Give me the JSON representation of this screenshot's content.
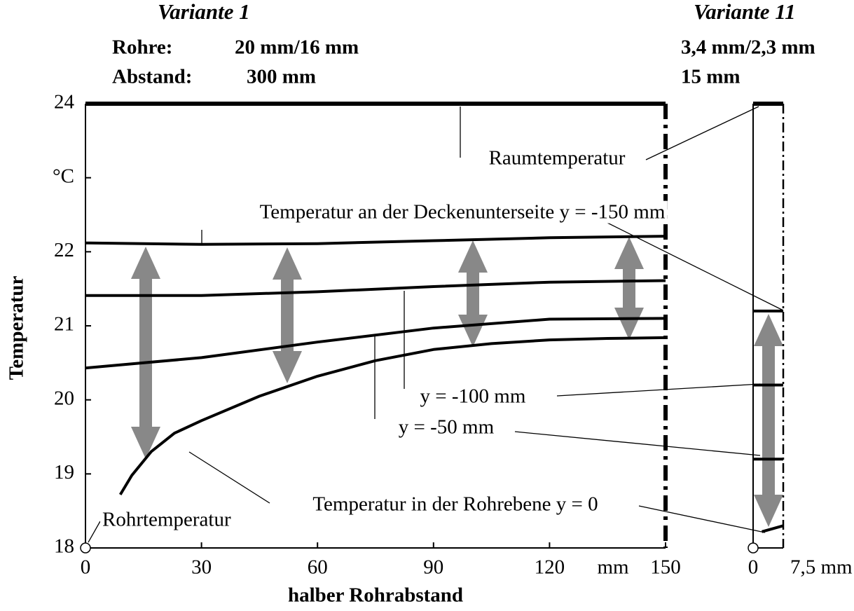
{
  "chart_data": [
    {
      "type": "line",
      "title": "Variante 1",
      "subtitle": [
        "Rohre:",
        "20 mm/16 mm",
        "Abstand:",
        "300 mm"
      ],
      "xlabel": "halber Rohrabstand",
      "ylabel": "Temperatur",
      "x_unit": "mm",
      "xlim": [
        0,
        150
      ],
      "ylim": [
        18,
        24
      ],
      "xticks": [
        0,
        30,
        60,
        90,
        120,
        150
      ],
      "yticks": [
        18,
        19,
        20,
        21,
        22,
        {
          "value": 23,
          "label": "°C"
        },
        24
      ],
      "color": "#000000",
      "series": [
        {
          "name": "Raumtemperatur",
          "x": [
            0,
            150
          ],
          "values": [
            24,
            24
          ]
        },
        {
          "name": "Temperatur an der Deckenunterseite y = -150 mm",
          "x": [
            0,
            30,
            60,
            90,
            120,
            150
          ],
          "values": [
            22.12,
            22.1,
            22.11,
            22.15,
            22.19,
            22.21
          ]
        },
        {
          "name": "y = -100 mm",
          "x": [
            0,
            30,
            60,
            90,
            120,
            150
          ],
          "values": [
            21.41,
            21.41,
            21.46,
            21.53,
            21.59,
            21.61
          ]
        },
        {
          "name": "y = -50 mm",
          "x": [
            0,
            30,
            60,
            90,
            120,
            150
          ],
          "values": [
            20.43,
            20.57,
            20.78,
            20.97,
            21.09,
            21.1
          ]
        },
        {
          "name": "Temperatur in der Rohrebene y = 0",
          "x": [
            9,
            12,
            17,
            23,
            30,
            45,
            60,
            75,
            90,
            105,
            120,
            135,
            150
          ],
          "values": [
            18.72,
            18.98,
            19.3,
            19.55,
            19.72,
            20.05,
            20.32,
            20.53,
            20.68,
            20.76,
            20.81,
            20.83,
            20.84
          ]
        },
        {
          "name": "Rohrtemperatur",
          "x": [
            0
          ],
          "values": [
            18
          ],
          "marker": "circle"
        }
      ]
    },
    {
      "type": "line",
      "title": "Variante 11",
      "subtitle": [
        "3,4 mm/2,3 mm",
        "15 mm"
      ],
      "xlim": [
        0,
        7.5
      ],
      "ylim": [
        18,
        24
      ],
      "xticks": [
        0,
        {
          "value": 7.5,
          "label": "7,5 mm"
        }
      ],
      "color": "#000000",
      "series": [
        {
          "x": [
            0,
            7.5
          ],
          "values": [
            24,
            24
          ]
        },
        {
          "x": [
            0,
            7.5
          ],
          "values": [
            21.2,
            21.2
          ]
        },
        {
          "x": [
            0,
            7.5
          ],
          "values": [
            20.2,
            20.2
          ]
        },
        {
          "x": [
            0,
            7.5
          ],
          "values": [
            19.2,
            19.2
          ]
        },
        {
          "x": [
            2.2,
            7.5
          ],
          "values": [
            18.22,
            18.3
          ]
        },
        {
          "x": [
            0
          ],
          "values": [
            18
          ],
          "marker": "circle"
        }
      ]
    }
  ]
}
